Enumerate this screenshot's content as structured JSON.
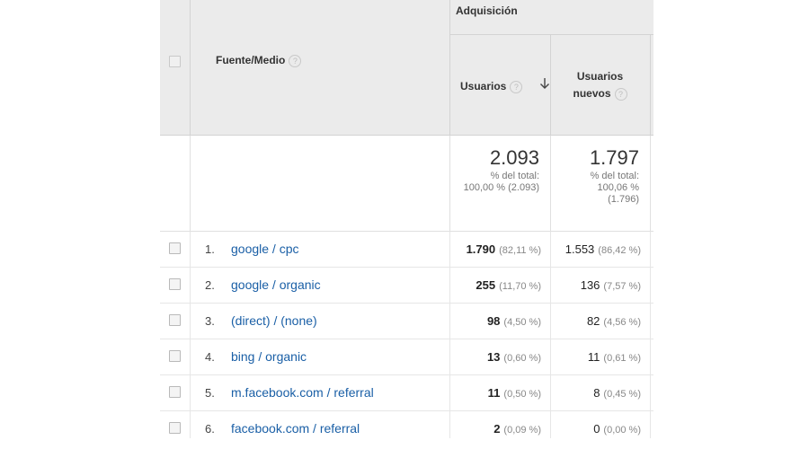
{
  "header": {
    "group_label": "Adquisición",
    "source_label": "Fuente/Medio",
    "users_label": "Usuarios",
    "new_users_line1": "Usuarios",
    "new_users_line2": "nuevos",
    "help_glyph": "?",
    "sort_icon": "arrow-down-icon"
  },
  "totals": {
    "users": {
      "value": "2.093",
      "line1": "% del total:",
      "line2": "100,00 % (2.093)",
      "line3": ""
    },
    "new_users": {
      "value": "1.797",
      "line1": "% del total:",
      "line2": "100,06 %",
      "line3": "(1.796)"
    }
  },
  "rows": [
    {
      "num": "1.",
      "source": "google / cpc",
      "users": "1.790",
      "users_pct": "(82,11 %)",
      "new_users": "1.553",
      "new_users_pct": "(86,42 %)"
    },
    {
      "num": "2.",
      "source": "google / organic",
      "users": "255",
      "users_pct": "(11,70 %)",
      "new_users": "136",
      "new_users_pct": "(7,57 %)"
    },
    {
      "num": "3.",
      "source": "(direct) / (none)",
      "users": "98",
      "users_pct": "(4,50 %)",
      "new_users": "82",
      "new_users_pct": "(4,56 %)"
    },
    {
      "num": "4.",
      "source": "bing / organic",
      "users": "13",
      "users_pct": "(0,60 %)",
      "new_users": "11",
      "new_users_pct": "(0,61 %)"
    },
    {
      "num": "5.",
      "source": "m.facebook.com / referral",
      "users": "11",
      "users_pct": "(0,50 %)",
      "new_users": "8",
      "new_users_pct": "(0,45 %)"
    },
    {
      "num": "6.",
      "source": "facebook.com / referral",
      "users": "2",
      "users_pct": "(0,09 %)",
      "new_users": "0",
      "new_users_pct": "(0,00 %)"
    }
  ],
  "colors": {
    "header_bg": "#ebebeb",
    "link": "#1a5fa6"
  }
}
